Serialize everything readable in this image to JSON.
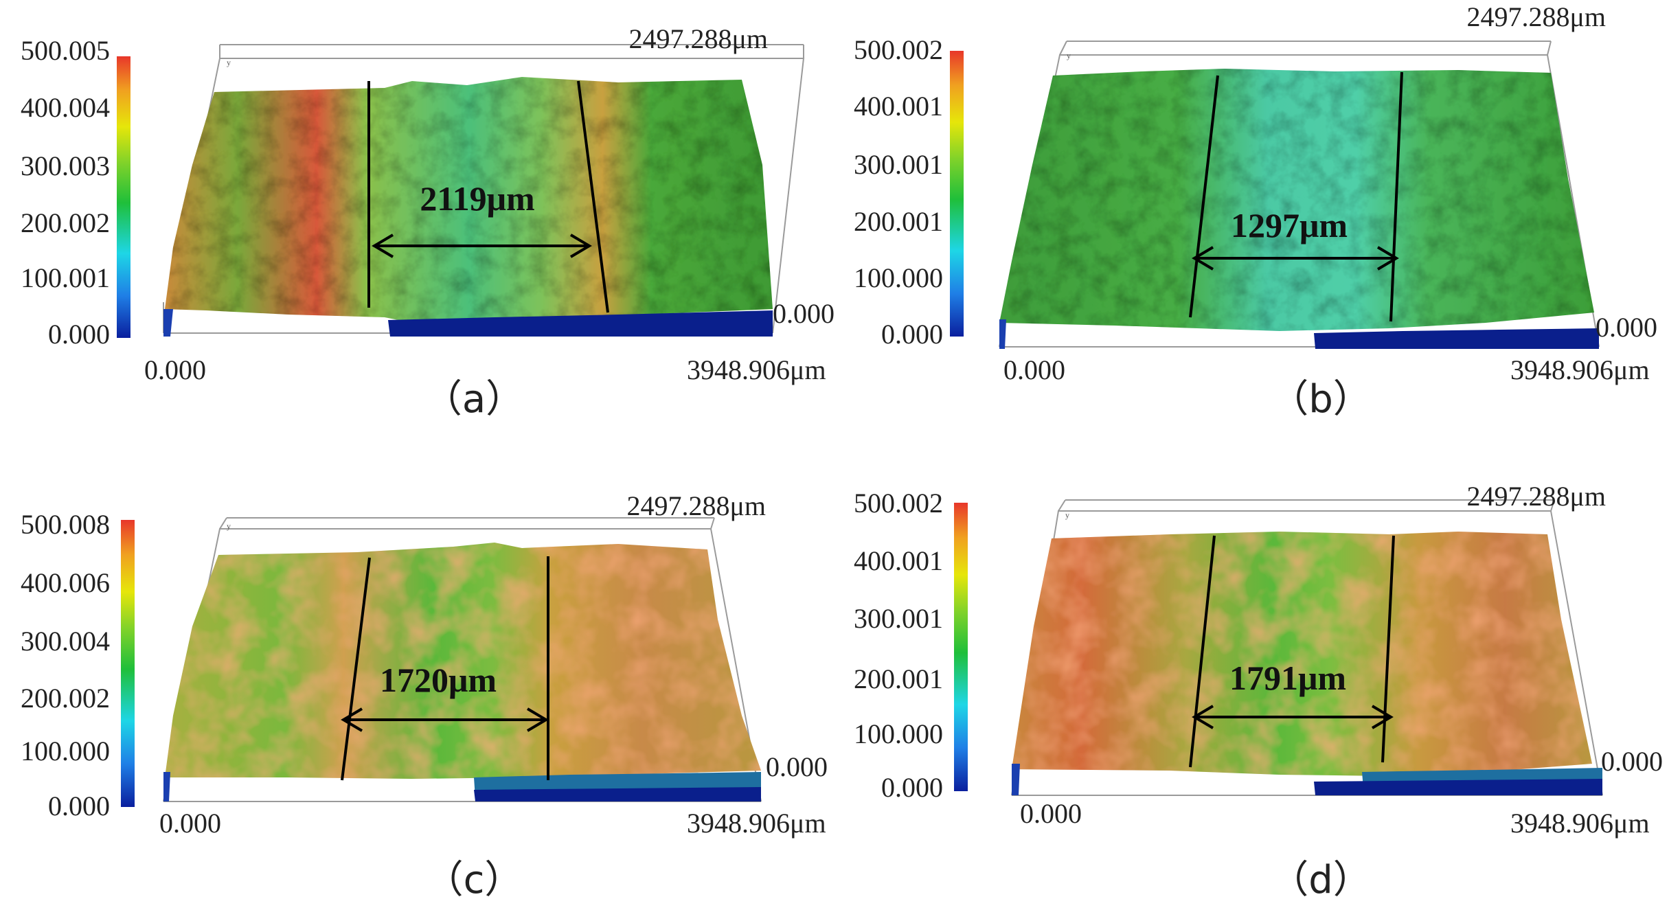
{
  "colors": {
    "colorbar_stops": [
      "#0a1f9e",
      "#1f7fe6",
      "#1ed6e6",
      "#1fbf3a",
      "#7fd22a",
      "#e6e60a",
      "#f0a020",
      "#e8372a"
    ],
    "substrate_blue": "#0a1f8c",
    "axis_line": "#9a9a9a",
    "measure_line": "#000000"
  },
  "panels": [
    {
      "panel_label": "（a）",
      "scale_ticks": [
        "500.005",
        "400.004",
        "300.003",
        "200.002",
        "100.001",
        "0.000"
      ],
      "x_axis_start": "0.000",
      "x_axis_end": "3948.906μm",
      "y_axis_end": "2497.288μm",
      "z_axis_origin": "0.000",
      "axis_letter": "y",
      "track_width": "2119μm",
      "surface_tint": "green-red"
    },
    {
      "panel_label": "（b）",
      "scale_ticks": [
        "500.002",
        "400.001",
        "300.001",
        "200.001",
        "100.000",
        "0.000"
      ],
      "x_axis_start": "0.000",
      "x_axis_end": "3948.906μm",
      "y_axis_end": "2497.288μm",
      "z_axis_origin": "0.000",
      "axis_letter": "y",
      "track_width": "1297μm",
      "surface_tint": "green"
    },
    {
      "panel_label": "（c）",
      "scale_ticks": [
        "500.008",
        "400.006",
        "300.004",
        "200.002",
        "100.000",
        "0.000"
      ],
      "x_axis_start": "0.000",
      "x_axis_end": "3948.906μm",
      "y_axis_end": "2497.288μm",
      "z_axis_origin": "0.000",
      "axis_letter": "y",
      "track_width": "1720μm",
      "surface_tint": "olive"
    },
    {
      "panel_label": "（d）",
      "scale_ticks": [
        "500.002",
        "400.001",
        "300.001",
        "200.001",
        "100.000",
        "0.000"
      ],
      "x_axis_start": "0.000",
      "x_axis_end": "3948.906μm",
      "y_axis_end": "2497.288μm",
      "z_axis_origin": "0.000",
      "axis_letter": "y",
      "track_width": "1791μm",
      "surface_tint": "olive-red"
    }
  ]
}
